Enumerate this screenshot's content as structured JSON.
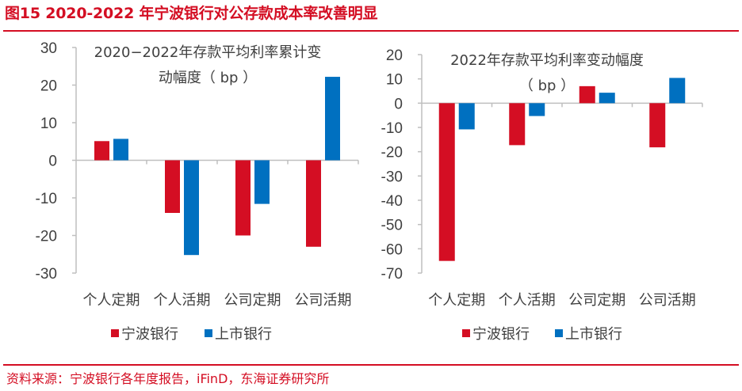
{
  "header": {
    "figure_title": "图15  2020-2022 年宁波银行对公存款成本率改善明显"
  },
  "footer": {
    "source": "资料来源：宁波银行各年度报告，iFinD，东海证券研究所"
  },
  "colors": {
    "accent": "#d40e23",
    "series_ningbo": "#d40e23",
    "series_listed": "#0070c0",
    "axis": "#bfbfbf",
    "text": "#404040"
  },
  "chart_data": [
    {
      "type": "bar",
      "title_lines": [
        "2020−2022年存款平均利率累计变",
        "动幅度（ bp ）"
      ],
      "categories": [
        "个人定期",
        "个人活期",
        "公司定期",
        "公司活期"
      ],
      "series": [
        {
          "name": "宁波银行",
          "values": [
            5.1,
            -14.0,
            -20.0,
            -23.0
          ]
        },
        {
          "name": "上市银行",
          "values": [
            5.7,
            -25.2,
            -11.6,
            22.2
          ]
        }
      ],
      "yticks": [
        30,
        20,
        10,
        0,
        -10,
        -20,
        -30
      ],
      "ylim": [
        -30,
        30
      ],
      "xlabel": "",
      "ylabel": "",
      "grid": false,
      "legend_position": "bottom"
    },
    {
      "type": "bar",
      "title_lines": [
        "2022年存款平均利率变动幅度",
        "（ bp ）"
      ],
      "categories": [
        "个人定期",
        "个人活期",
        "公司定期",
        "公司活期"
      ],
      "series": [
        {
          "name": "宁波银行",
          "values": [
            -65.0,
            -17.3,
            7.0,
            -18.2
          ]
        },
        {
          "name": "上市银行",
          "values": [
            -10.8,
            -5.3,
            4.3,
            10.4
          ]
        }
      ],
      "yticks": [
        20,
        10,
        0,
        -10,
        -20,
        -30,
        -40,
        -50,
        -60,
        -70
      ],
      "ylim": [
        -70,
        20
      ],
      "xlabel": "",
      "ylabel": "",
      "grid": false,
      "legend_position": "bottom"
    }
  ]
}
